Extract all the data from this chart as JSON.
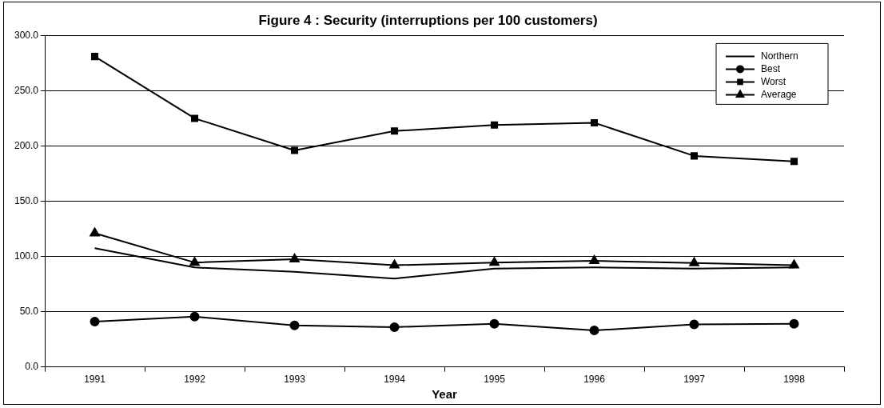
{
  "chart_data": {
    "type": "line",
    "title": "Figure 4 : Security (interruptions per 100 customers)",
    "xlabel": "Year",
    "categories": [
      "1991",
      "1992",
      "1993",
      "1994",
      "1995",
      "1996",
      "1997",
      "1998"
    ],
    "series": [
      {
        "name": "Northern",
        "color": "#000000",
        "marker": "none",
        "values": [
          107.5,
          90,
          86,
          80,
          89,
          90,
          89,
          90
        ]
      },
      {
        "name": "Best",
        "color": "#000000",
        "marker": "circle",
        "values": [
          41,
          45.5,
          37.5,
          36,
          39,
          33,
          38.5,
          39
        ]
      },
      {
        "name": "Worst",
        "color": "#000000",
        "marker": "square",
        "values": [
          281,
          225,
          196,
          213.5,
          219,
          221,
          191,
          186
        ]
      },
      {
        "name": "Average",
        "color": "#000000",
        "marker": "triangle",
        "values": [
          121,
          94.5,
          97.5,
          92,
          94.5,
          96,
          94,
          92
        ]
      }
    ],
    "ylim": [
      0,
      300
    ],
    "yticks": [
      {
        "value": 0,
        "label": "0.0"
      },
      {
        "value": 50,
        "label": "50.0"
      },
      {
        "value": 100,
        "label": "100.0"
      },
      {
        "value": 150,
        "label": "150.0"
      },
      {
        "value": 200,
        "label": "200.0"
      },
      {
        "value": 250,
        "label": "250.0"
      },
      {
        "value": 300,
        "label": "300.0"
      }
    ],
    "grid": "y",
    "legend": "top right",
    "line_style": "solid"
  }
}
